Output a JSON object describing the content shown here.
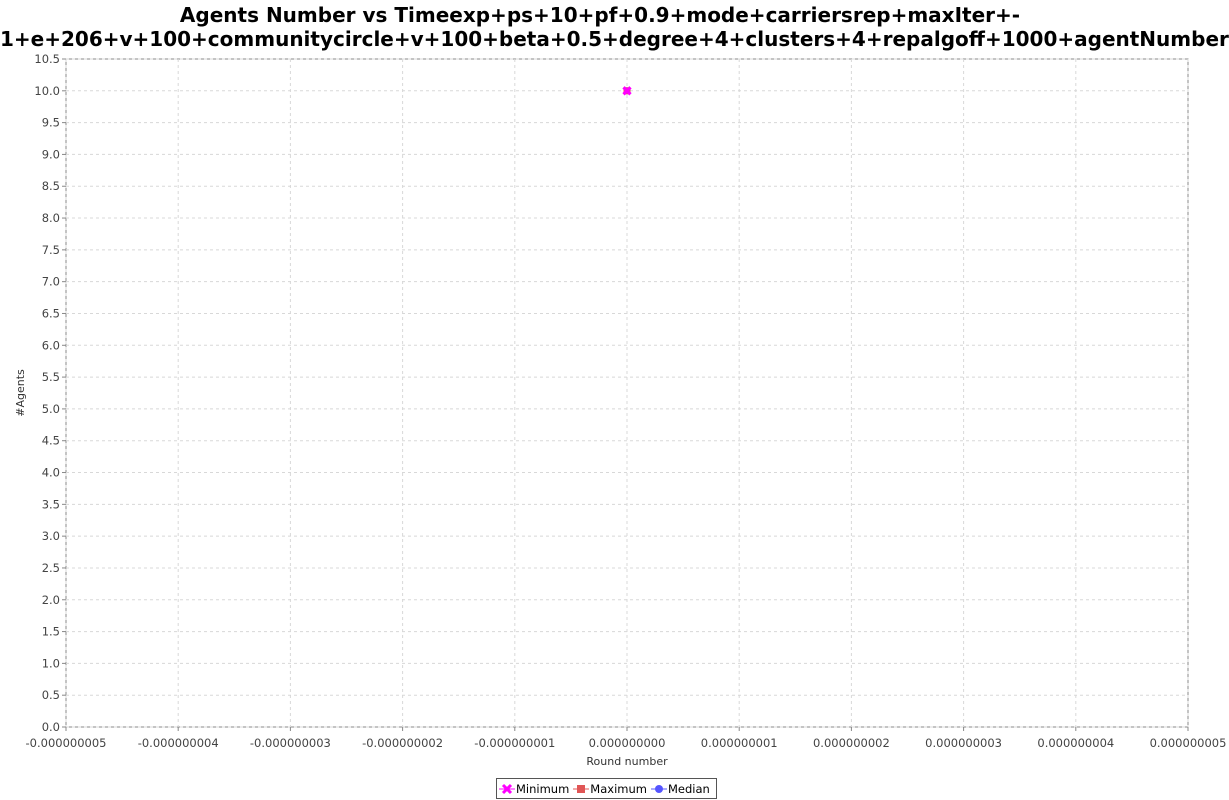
{
  "chart_data": {
    "type": "scatter",
    "title_line1": "Agents Number vs Timeexp+ps+10+pf+0.9+mode+carriersrep+maxIter+-",
    "title_line2": "1+e+206+v+100+communitycircle+v+100+beta+0.5+degree+4+clusters+4+repalgoff+1000+agentNumber",
    "xlabel": "Round number",
    "ylabel": "#Agents",
    "xlim": [
      -5e-09,
      5e-09
    ],
    "ylim": [
      0.0,
      10.5
    ],
    "x_ticks": [
      "-0.000000005",
      "-0.000000004",
      "-0.000000003",
      "-0.000000002",
      "-0.000000001",
      "0.000000000",
      "0.000000001",
      "0.000000002",
      "0.000000003",
      "0.000000004",
      "0.000000005"
    ],
    "y_ticks": [
      "0.0",
      "0.5",
      "1.0",
      "1.5",
      "2.0",
      "2.5",
      "3.0",
      "3.5",
      "4.0",
      "4.5",
      "5.0",
      "5.5",
      "6.0",
      "6.5",
      "7.0",
      "7.5",
      "8.0",
      "8.5",
      "9.0",
      "9.5",
      "10.0",
      "10.5"
    ],
    "grid": true,
    "legend_position": "bottom-center",
    "series": [
      {
        "name": "Minimum",
        "color": "#ff00ff",
        "marker": "x-shape",
        "points": [
          {
            "x": 0.0,
            "y": 10.0
          }
        ]
      },
      {
        "name": "Maximum",
        "color": "#e05555",
        "marker": "square",
        "points": [
          {
            "x": 0.0,
            "y": 10.0
          }
        ]
      },
      {
        "name": "Median",
        "color": "#5555ff",
        "marker": "circle",
        "points": [
          {
            "x": 0.0,
            "y": 10.0
          }
        ]
      }
    ]
  }
}
